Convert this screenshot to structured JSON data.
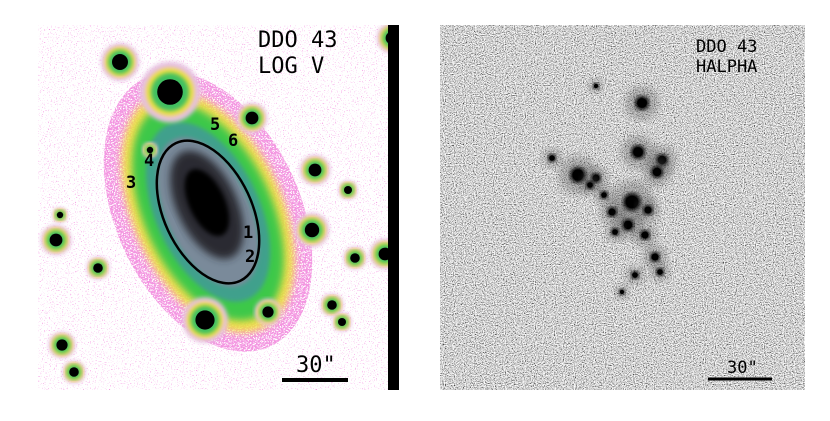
{
  "panels": [
    {
      "title": "DDO 43",
      "subtitle": "LOG V",
      "scale_bar": "30\"",
      "labels": [
        "1",
        "2",
        "3",
        "4",
        "5",
        "6"
      ]
    },
    {
      "title": "DDO 43",
      "subtitle": "HALPHA",
      "scale_bar": "30\""
    }
  ]
}
